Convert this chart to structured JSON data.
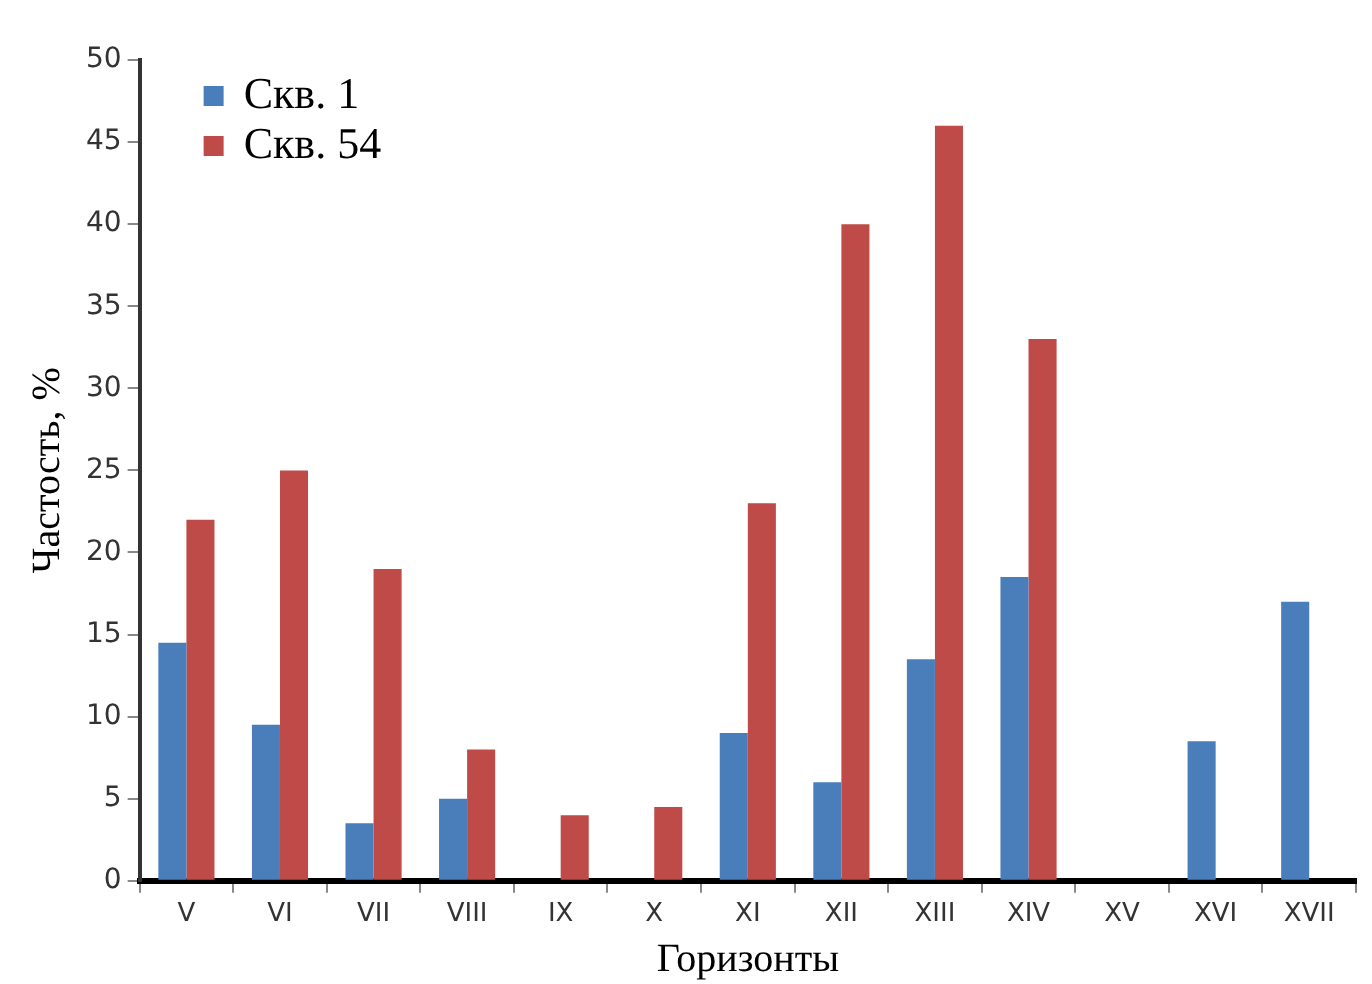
{
  "chart_data": {
    "type": "bar",
    "xlabel": "Горизонты",
    "ylabel": "Частость, %",
    "categories": [
      "V",
      "VI",
      "VII",
      "VIII",
      "IX",
      "X",
      "XI",
      "XII",
      "XIII",
      "XIV",
      "XV",
      "XVI",
      "XVII"
    ],
    "series": [
      {
        "name": "Скв. 1",
        "color": "#4a7ebb",
        "values": [
          14.5,
          9.5,
          3.5,
          5,
          0,
          0,
          9,
          6,
          13.5,
          18.5,
          0,
          8.5,
          17
        ]
      },
      {
        "name": "Скв. 54",
        "color": "#be4b48",
        "values": [
          22,
          25,
          19,
          8,
          4,
          4.5,
          23,
          40,
          46,
          33,
          0,
          0,
          0
        ]
      }
    ],
    "ylim": [
      0,
      50
    ],
    "yticks": [
      0,
      5,
      10,
      15,
      20,
      25,
      30,
      35,
      40,
      45,
      50
    ],
    "grid": false,
    "legend": "top left"
  }
}
